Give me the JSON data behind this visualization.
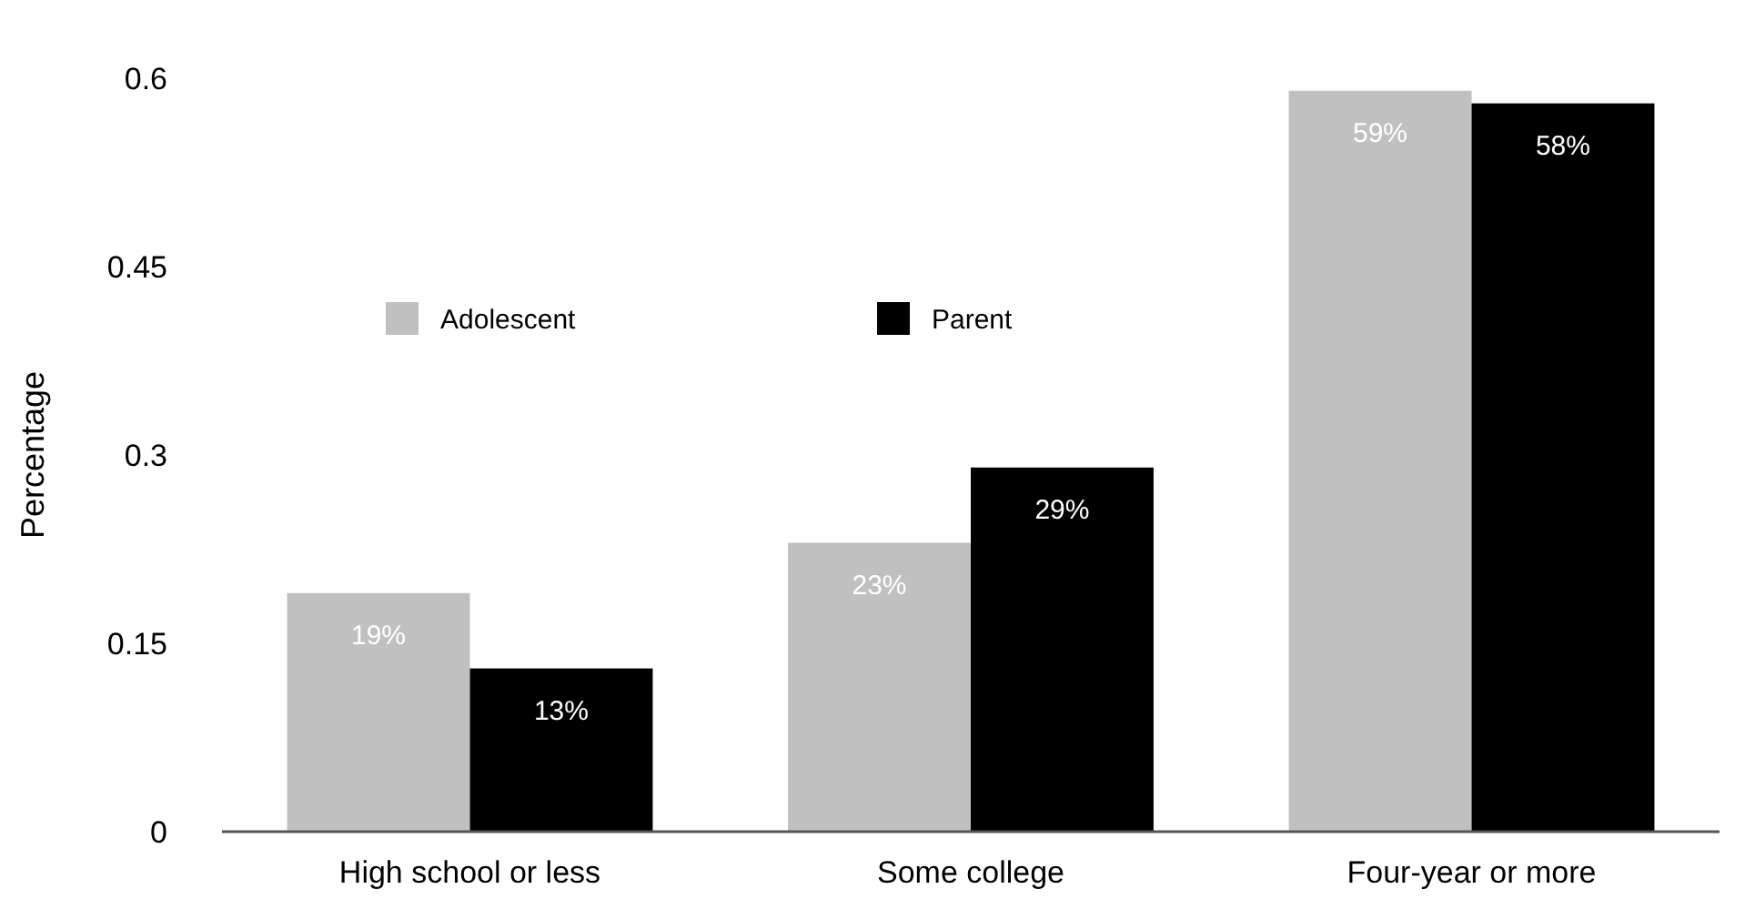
{
  "chart_data": {
    "type": "bar",
    "ylabel": "Percentage",
    "categories": [
      "High school or less",
      "Some college",
      "Four-year or more"
    ],
    "series": [
      {
        "name": "Adolescent",
        "color": "#c0c0c0",
        "values": [
          0.19,
          0.23,
          0.59
        ],
        "value_labels": [
          "19%",
          "23%",
          "59%"
        ]
      },
      {
        "name": "Parent",
        "color": "#000000",
        "values": [
          0.13,
          0.29,
          0.58
        ],
        "value_labels": [
          "13%",
          "29%",
          "58%"
        ]
      }
    ],
    "ylim": [
      0,
      0.6
    ],
    "yticks": [
      0,
      0.15,
      0.3,
      0.45,
      0.6
    ],
    "legend": "top left",
    "grid": false
  }
}
